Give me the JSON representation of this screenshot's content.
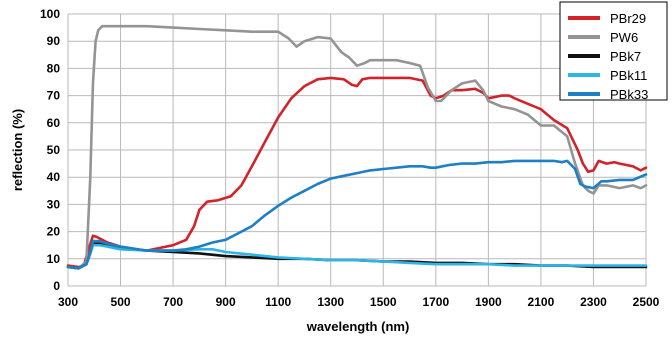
{
  "chart_data": {
    "type": "line",
    "title": "",
    "xlabel": "wavelength (nm)",
    "ylabel": "reflection (%)",
    "xlim": [
      300,
      2500
    ],
    "ylim": [
      0,
      100
    ],
    "x_ticks": [
      300,
      500,
      700,
      900,
      1100,
      1300,
      1500,
      1700,
      1900,
      2100,
      2300,
      2500
    ],
    "y_ticks": [
      0,
      10,
      20,
      30,
      40,
      50,
      60,
      70,
      80,
      90,
      100
    ],
    "grid": true,
    "legend_position": "top-right",
    "series": [
      {
        "name": "PBr29",
        "color": "#d2232a",
        "points": [
          [
            300,
            7.5
          ],
          [
            340,
            7
          ],
          [
            360,
            7.5
          ],
          [
            380,
            14
          ],
          [
            395,
            18.5
          ],
          [
            410,
            18
          ],
          [
            450,
            16
          ],
          [
            500,
            14.5
          ],
          [
            550,
            13.5
          ],
          [
            600,
            13
          ],
          [
            650,
            14
          ],
          [
            700,
            15
          ],
          [
            750,
            17
          ],
          [
            780,
            22
          ],
          [
            800,
            28
          ],
          [
            830,
            31
          ],
          [
            870,
            31.5
          ],
          [
            920,
            33
          ],
          [
            960,
            37
          ],
          [
            1000,
            44
          ],
          [
            1050,
            53
          ],
          [
            1100,
            62
          ],
          [
            1150,
            69
          ],
          [
            1200,
            73.5
          ],
          [
            1250,
            76
          ],
          [
            1300,
            76.5
          ],
          [
            1350,
            76
          ],
          [
            1380,
            74
          ],
          [
            1400,
            73.5
          ],
          [
            1420,
            76
          ],
          [
            1450,
            76.5
          ],
          [
            1500,
            76.5
          ],
          [
            1550,
            76.5
          ],
          [
            1600,
            76.5
          ],
          [
            1650,
            75.5
          ],
          [
            1680,
            70
          ],
          [
            1700,
            69
          ],
          [
            1730,
            70
          ],
          [
            1760,
            72
          ],
          [
            1800,
            72
          ],
          [
            1850,
            72.5
          ],
          [
            1880,
            71
          ],
          [
            1900,
            69
          ],
          [
            1950,
            70
          ],
          [
            1980,
            70
          ],
          [
            2000,
            69
          ],
          [
            2050,
            67
          ],
          [
            2100,
            65
          ],
          [
            2150,
            61
          ],
          [
            2200,
            58
          ],
          [
            2240,
            50
          ],
          [
            2260,
            45
          ],
          [
            2280,
            42
          ],
          [
            2300,
            42.5
          ],
          [
            2320,
            46
          ],
          [
            2350,
            45
          ],
          [
            2380,
            45.5
          ],
          [
            2400,
            45
          ],
          [
            2450,
            44
          ],
          [
            2480,
            42.5
          ],
          [
            2500,
            43.5
          ]
        ]
      },
      {
        "name": "PW6",
        "color": "#949494",
        "points": [
          [
            300,
            7
          ],
          [
            340,
            6.5
          ],
          [
            370,
            9
          ],
          [
            385,
            40
          ],
          [
            395,
            75
          ],
          [
            405,
            90
          ],
          [
            415,
            94
          ],
          [
            430,
            95.5
          ],
          [
            460,
            95.5
          ],
          [
            500,
            95.5
          ],
          [
            600,
            95.5
          ],
          [
            700,
            95
          ],
          [
            800,
            94.5
          ],
          [
            900,
            94
          ],
          [
            1000,
            93.5
          ],
          [
            1100,
            93.5
          ],
          [
            1140,
            91
          ],
          [
            1170,
            88
          ],
          [
            1200,
            90
          ],
          [
            1250,
            91.5
          ],
          [
            1300,
            91
          ],
          [
            1340,
            86
          ],
          [
            1370,
            84
          ],
          [
            1400,
            81
          ],
          [
            1430,
            82
          ],
          [
            1450,
            83
          ],
          [
            1500,
            83
          ],
          [
            1550,
            83
          ],
          [
            1600,
            82
          ],
          [
            1640,
            81
          ],
          [
            1670,
            73
          ],
          [
            1700,
            68
          ],
          [
            1720,
            68
          ],
          [
            1760,
            72
          ],
          [
            1800,
            74.5
          ],
          [
            1850,
            75.5
          ],
          [
            1880,
            72
          ],
          [
            1900,
            68
          ],
          [
            1950,
            66
          ],
          [
            2000,
            65
          ],
          [
            2050,
            63
          ],
          [
            2100,
            59
          ],
          [
            2150,
            59
          ],
          [
            2200,
            55
          ],
          [
            2230,
            45
          ],
          [
            2260,
            37
          ],
          [
            2280,
            35
          ],
          [
            2300,
            34
          ],
          [
            2320,
            37
          ],
          [
            2350,
            37
          ],
          [
            2400,
            36
          ],
          [
            2450,
            37
          ],
          [
            2480,
            36
          ],
          [
            2500,
            37
          ]
        ]
      },
      {
        "name": "PBk7",
        "color": "#111111",
        "points": [
          [
            300,
            7
          ],
          [
            340,
            6.5
          ],
          [
            370,
            8
          ],
          [
            385,
            12
          ],
          [
            395,
            15.5
          ],
          [
            420,
            15.5
          ],
          [
            450,
            15
          ],
          [
            500,
            14
          ],
          [
            600,
            13
          ],
          [
            700,
            12.5
          ],
          [
            800,
            12
          ],
          [
            900,
            11
          ],
          [
            1000,
            10.5
          ],
          [
            1100,
            10
          ],
          [
            1200,
            10
          ],
          [
            1300,
            9.5
          ],
          [
            1400,
            9.5
          ],
          [
            1500,
            9
          ],
          [
            1600,
            9
          ],
          [
            1700,
            8.5
          ],
          [
            1800,
            8.5
          ],
          [
            1900,
            8
          ],
          [
            2000,
            8
          ],
          [
            2100,
            7.5
          ],
          [
            2200,
            7.5
          ],
          [
            2300,
            7
          ],
          [
            2400,
            7
          ],
          [
            2500,
            7
          ]
        ]
      },
      {
        "name": "PBk11",
        "color": "#2cb5e8",
        "points": [
          [
            300,
            7
          ],
          [
            340,
            6.5
          ],
          [
            370,
            8
          ],
          [
            385,
            12
          ],
          [
            395,
            15
          ],
          [
            420,
            15
          ],
          [
            450,
            14.5
          ],
          [
            500,
            13.5
          ],
          [
            600,
            13
          ],
          [
            700,
            13
          ],
          [
            800,
            13.5
          ],
          [
            850,
            13.5
          ],
          [
            900,
            12.5
          ],
          [
            1000,
            11.5
          ],
          [
            1100,
            10.5
          ],
          [
            1200,
            10
          ],
          [
            1300,
            9.5
          ],
          [
            1400,
            9.5
          ],
          [
            1500,
            9
          ],
          [
            1600,
            8.5
          ],
          [
            1700,
            8
          ],
          [
            1800,
            8
          ],
          [
            1900,
            8
          ],
          [
            2000,
            7.5
          ],
          [
            2100,
            7.5
          ],
          [
            2200,
            7.5
          ],
          [
            2300,
            7.5
          ],
          [
            2400,
            7.5
          ],
          [
            2500,
            7.5
          ]
        ]
      },
      {
        "name": "PBk33",
        "color": "#1d7fc4",
        "points": [
          [
            300,
            7
          ],
          [
            340,
            6.5
          ],
          [
            370,
            8
          ],
          [
            385,
            12.5
          ],
          [
            395,
            16.5
          ],
          [
            420,
            16.5
          ],
          [
            450,
            15.5
          ],
          [
            500,
            14.5
          ],
          [
            600,
            13
          ],
          [
            700,
            13
          ],
          [
            750,
            13.5
          ],
          [
            800,
            14.5
          ],
          [
            850,
            16
          ],
          [
            900,
            17
          ],
          [
            950,
            19.5
          ],
          [
            1000,
            22
          ],
          [
            1050,
            26
          ],
          [
            1100,
            29.5
          ],
          [
            1150,
            32.5
          ],
          [
            1200,
            35
          ],
          [
            1250,
            37.5
          ],
          [
            1300,
            39.5
          ],
          [
            1350,
            40.5
          ],
          [
            1400,
            41.5
          ],
          [
            1450,
            42.5
          ],
          [
            1500,
            43
          ],
          [
            1550,
            43.5
          ],
          [
            1600,
            44
          ],
          [
            1650,
            44
          ],
          [
            1680,
            43.5
          ],
          [
            1700,
            43.5
          ],
          [
            1750,
            44.5
          ],
          [
            1800,
            45
          ],
          [
            1850,
            45
          ],
          [
            1900,
            45.5
          ],
          [
            1950,
            45.5
          ],
          [
            2000,
            46
          ],
          [
            2050,
            46
          ],
          [
            2100,
            46
          ],
          [
            2150,
            46
          ],
          [
            2180,
            45.5
          ],
          [
            2200,
            46
          ],
          [
            2230,
            43
          ],
          [
            2250,
            37.5
          ],
          [
            2270,
            36.5
          ],
          [
            2300,
            36
          ],
          [
            2330,
            38.5
          ],
          [
            2350,
            38.5
          ],
          [
            2400,
            39
          ],
          [
            2450,
            39
          ],
          [
            2500,
            41
          ]
        ]
      }
    ]
  }
}
